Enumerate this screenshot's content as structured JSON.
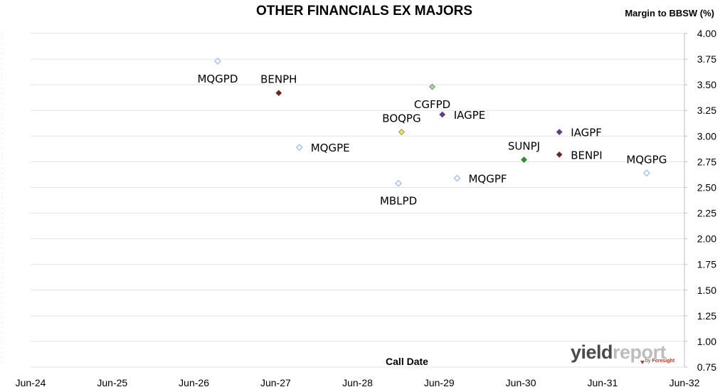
{
  "chart_data": {
    "type": "scatter",
    "title": "OTHER FINANCIALS EX MAJORS",
    "xlabel": "Call Date",
    "ylabel": "Margin to BBSW (%)",
    "xlim": [
      "2024-06-01",
      "2032-06-01"
    ],
    "ylim": [
      0.75,
      4.0
    ],
    "yticks": [
      "0.75",
      "1.00",
      "1.25",
      "1.50",
      "1.75",
      "2.00",
      "2.25",
      "2.50",
      "2.75",
      "3.00",
      "3.25",
      "3.50",
      "3.75",
      "4.00"
    ],
    "xticks": [
      {
        "label": "Jun-24",
        "date": "2024-06-01"
      },
      {
        "label": "Jun-25",
        "date": "2025-06-01"
      },
      {
        "label": "Jun-26",
        "date": "2026-06-01"
      },
      {
        "label": "Jun-27",
        "date": "2027-06-01"
      },
      {
        "label": "Jun-28",
        "date": "2028-06-01"
      },
      {
        "label": "Jun-29",
        "date": "2029-06-01"
      },
      {
        "label": "Jun-30",
        "date": "2030-06-01"
      },
      {
        "label": "Jun-31",
        "date": "2031-06-01"
      },
      {
        "label": "Jun-32",
        "date": "2032-06-01"
      }
    ],
    "grid": "horizontal",
    "y_axis_side": "right",
    "points": [
      {
        "label": "MQGPD",
        "date": "2026-09-15",
        "y": 3.73,
        "color": "#a9c4e6",
        "hollow": true,
        "label_pos": "below"
      },
      {
        "label": "BENPH",
        "date": "2027-06-15",
        "y": 3.42,
        "color": "#7b1e1e",
        "hollow": false,
        "label_pos": "above"
      },
      {
        "label": "MQGPE",
        "date": "2027-09-15",
        "y": 2.89,
        "color": "#a9c4e6",
        "hollow": true,
        "label_pos": "right"
      },
      {
        "label": "CGFPD",
        "date": "2029-05-01",
        "y": 3.48,
        "color": "#a6d4a0",
        "hollow": false,
        "label_pos": "below"
      },
      {
        "label": "IAGPE",
        "date": "2029-06-15",
        "y": 3.21,
        "color": "#7030a0",
        "hollow": false,
        "label_pos": "right"
      },
      {
        "label": "BOQPG",
        "date": "2028-12-15",
        "y": 3.04,
        "color": "#e8e84a",
        "hollow": false,
        "label_pos": "above"
      },
      {
        "label": "MBLPD",
        "date": "2028-12-01",
        "y": 2.54,
        "color": "#a9c4e6",
        "hollow": true,
        "label_pos": "below"
      },
      {
        "label": "MQGPF",
        "date": "2029-08-20",
        "y": 2.59,
        "color": "#a9c4e6",
        "hollow": true,
        "label_pos": "right"
      },
      {
        "label": "SUNPJ",
        "date": "2030-06-15",
        "y": 2.77,
        "color": "#1aa01a",
        "hollow": false,
        "label_pos": "above"
      },
      {
        "label": "IAGPF",
        "date": "2030-11-20",
        "y": 3.04,
        "color": "#7030a0",
        "hollow": false,
        "label_pos": "right"
      },
      {
        "label": "BENPI",
        "date": "2030-11-20",
        "y": 2.82,
        "color": "#7b1e1e",
        "hollow": false,
        "label_pos": "right"
      },
      {
        "label": "MQGPG",
        "date": "2031-12-15",
        "y": 2.64,
        "color": "#a9c4e6",
        "hollow": true,
        "label_pos": "above"
      }
    ]
  },
  "logo": {
    "yield": "yield",
    "report": "report",
    "by": "by",
    "brand": "Foresight"
  }
}
